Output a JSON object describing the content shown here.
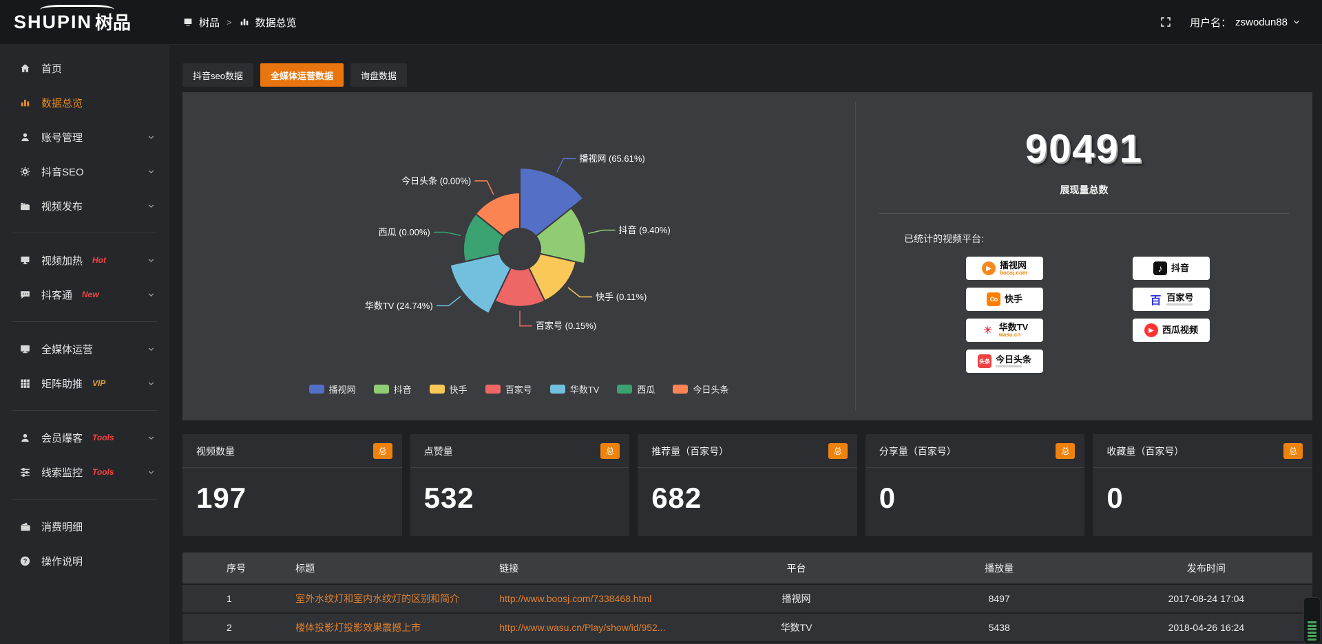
{
  "header": {
    "logo_en": "SHUPIN",
    "logo_cn": "树品",
    "breadcrumb": {
      "root": "树品",
      "separator": ">",
      "current": "数据总览"
    },
    "username_label": "用户名：",
    "username": "zswodun88"
  },
  "sidebar": {
    "items": [
      {
        "label": "首页",
        "icon": "home"
      },
      {
        "label": "数据总览",
        "icon": "chart",
        "active": true
      },
      {
        "label": "账号管理",
        "icon": "user",
        "chevron": true
      },
      {
        "label": "抖音SEO",
        "icon": "gear",
        "chevron": true
      },
      {
        "label": "视频发布",
        "icon": "clapper",
        "chevron": true
      },
      {
        "divider": true
      },
      {
        "label": "视频加热",
        "icon": "screen",
        "badge": "Hot",
        "badge_color": "#ff4040",
        "chevron": true
      },
      {
        "label": "抖客通",
        "icon": "chat",
        "badge": "New",
        "badge_color": "#ff4040",
        "chevron": true
      },
      {
        "divider": true
      },
      {
        "label": "全媒体运营",
        "icon": "monitor",
        "chevron": true
      },
      {
        "label": "矩阵助推",
        "icon": "grid",
        "badge": "VIP",
        "badge_color": "#e7a23d",
        "chevron": true
      },
      {
        "divider": true
      },
      {
        "label": "会员爆客",
        "icon": "user",
        "badge": "Tools",
        "badge_color": "#ff4040",
        "chevron": true
      },
      {
        "label": "线索监控",
        "icon": "sliders",
        "badge": "Tools",
        "badge_color": "#ff4040",
        "chevron": true
      },
      {
        "divider": true
      },
      {
        "label": "消费明细",
        "icon": "wallet"
      },
      {
        "label": "操作说明",
        "icon": "question"
      }
    ]
  },
  "tabs": [
    {
      "label": "抖音seo数据",
      "active": false
    },
    {
      "label": "全媒体运营数据",
      "active": true
    },
    {
      "label": "询盘数据",
      "active": false
    }
  ],
  "chart_data": {
    "type": "pie",
    "subtype": "nightingale-rose",
    "legend_position": "bottom",
    "items": [
      {
        "name": "播视网",
        "percent": 65.61,
        "color": "#5470c6"
      },
      {
        "name": "抖音",
        "percent": 9.4,
        "color": "#91cc75"
      },
      {
        "name": "快手",
        "percent": 0.11,
        "color": "#fac858"
      },
      {
        "name": "百家号",
        "percent": 0.15,
        "color": "#ee6666"
      },
      {
        "name": "华数TV",
        "percent": 24.74,
        "color": "#73c0de"
      },
      {
        "name": "西瓜",
        "percent": 0.0,
        "color": "#3ba272"
      },
      {
        "name": "今日头条",
        "percent": 0.0,
        "color": "#fc8452"
      }
    ]
  },
  "summary": {
    "total": "90491",
    "total_label": "展现量总数",
    "platforms_label": "已统计的视频平台:",
    "platforms": [
      {
        "name": "播视网",
        "sub": "boosj.com",
        "logo": "boosj"
      },
      {
        "name": "抖音",
        "logo": "douyin"
      },
      {
        "name": "快手",
        "logo": "kuaishou"
      },
      {
        "name": "百家号",
        "logo": "baijia",
        "subbar": true
      },
      {
        "name": "华数TV",
        "sub": "wasu.cn",
        "logo": "wasu"
      },
      {
        "name": "西瓜视频",
        "logo": "xigua"
      },
      {
        "name": "今日头条",
        "logo": "toutiao",
        "subbar": true
      }
    ]
  },
  "stat_cards": [
    {
      "label": "视频数量",
      "badge": "总",
      "value": "197"
    },
    {
      "label": "点赞量",
      "badge": "总",
      "value": "532"
    },
    {
      "label": "推荐量（百家号）",
      "badge": "总",
      "value": "682"
    },
    {
      "label": "分享量（百家号）",
      "badge": "总",
      "value": "0"
    },
    {
      "label": "收藏量（百家号）",
      "badge": "总",
      "value": "0"
    }
  ],
  "table": {
    "headers": [
      "序号",
      "标题",
      "链接",
      "平台",
      "播放量",
      "发布时间"
    ],
    "rows": [
      [
        "1",
        "室外水纹灯和室内水纹灯的区别和简介",
        "http://www.boosj.com/7338468.html",
        "播视网",
        "8497",
        "2017-08-24 17:04"
      ],
      [
        "2",
        "楼体投影灯投影效果震撼上市",
        "http://www.wasu.cn/Play/show/id/952...",
        "华数TV",
        "5438",
        "2018-04-26 16:24"
      ]
    ],
    "partial_row": true
  },
  "colors": {
    "accent_orange": "#e9750e",
    "badge_orange": "#ef820d",
    "link_orange": "#e0812f",
    "sidebar_active": "#ea8c1f"
  }
}
